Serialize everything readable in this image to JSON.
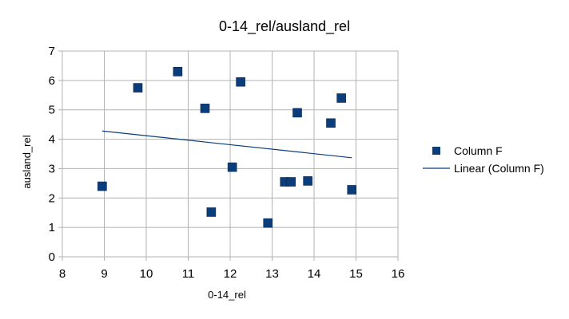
{
  "chart_data": {
    "type": "scatter",
    "title": "0-14_rel/ausland_rel",
    "xlabel": "0-14_rel",
    "ylabel": "ausland_rel",
    "xlim": [
      8,
      16
    ],
    "ylim": [
      0,
      7
    ],
    "x_ticks": [
      "8",
      "9",
      "10",
      "11",
      "12",
      "13",
      "14",
      "15",
      "16"
    ],
    "y_ticks": [
      "0",
      "1",
      "2",
      "3",
      "4",
      "5",
      "6",
      "7"
    ],
    "grid": true,
    "legend_position": "right",
    "series": [
      {
        "name": "Column F",
        "marker": "square",
        "color": "#0b3d7a",
        "points": [
          {
            "x": 8.95,
            "y": 2.4
          },
          {
            "x": 9.8,
            "y": 5.75
          },
          {
            "x": 10.75,
            "y": 6.3
          },
          {
            "x": 11.4,
            "y": 5.05
          },
          {
            "x": 11.55,
            "y": 1.52
          },
          {
            "x": 12.05,
            "y": 3.05
          },
          {
            "x": 12.25,
            "y": 5.95
          },
          {
            "x": 12.9,
            "y": 1.15
          },
          {
            "x": 13.3,
            "y": 2.55
          },
          {
            "x": 13.45,
            "y": 2.55
          },
          {
            "x": 13.6,
            "y": 4.9
          },
          {
            "x": 13.85,
            "y": 2.58
          },
          {
            "x": 14.4,
            "y": 4.55
          },
          {
            "x": 14.65,
            "y": 5.4
          },
          {
            "x": 14.9,
            "y": 2.28
          }
        ]
      }
    ],
    "trendline": {
      "name": "Linear (Column F)",
      "type": "linear",
      "color": "#0b3d7a",
      "x_range": [
        8.95,
        14.9
      ],
      "y_range": [
        4.28,
        3.37
      ]
    }
  }
}
